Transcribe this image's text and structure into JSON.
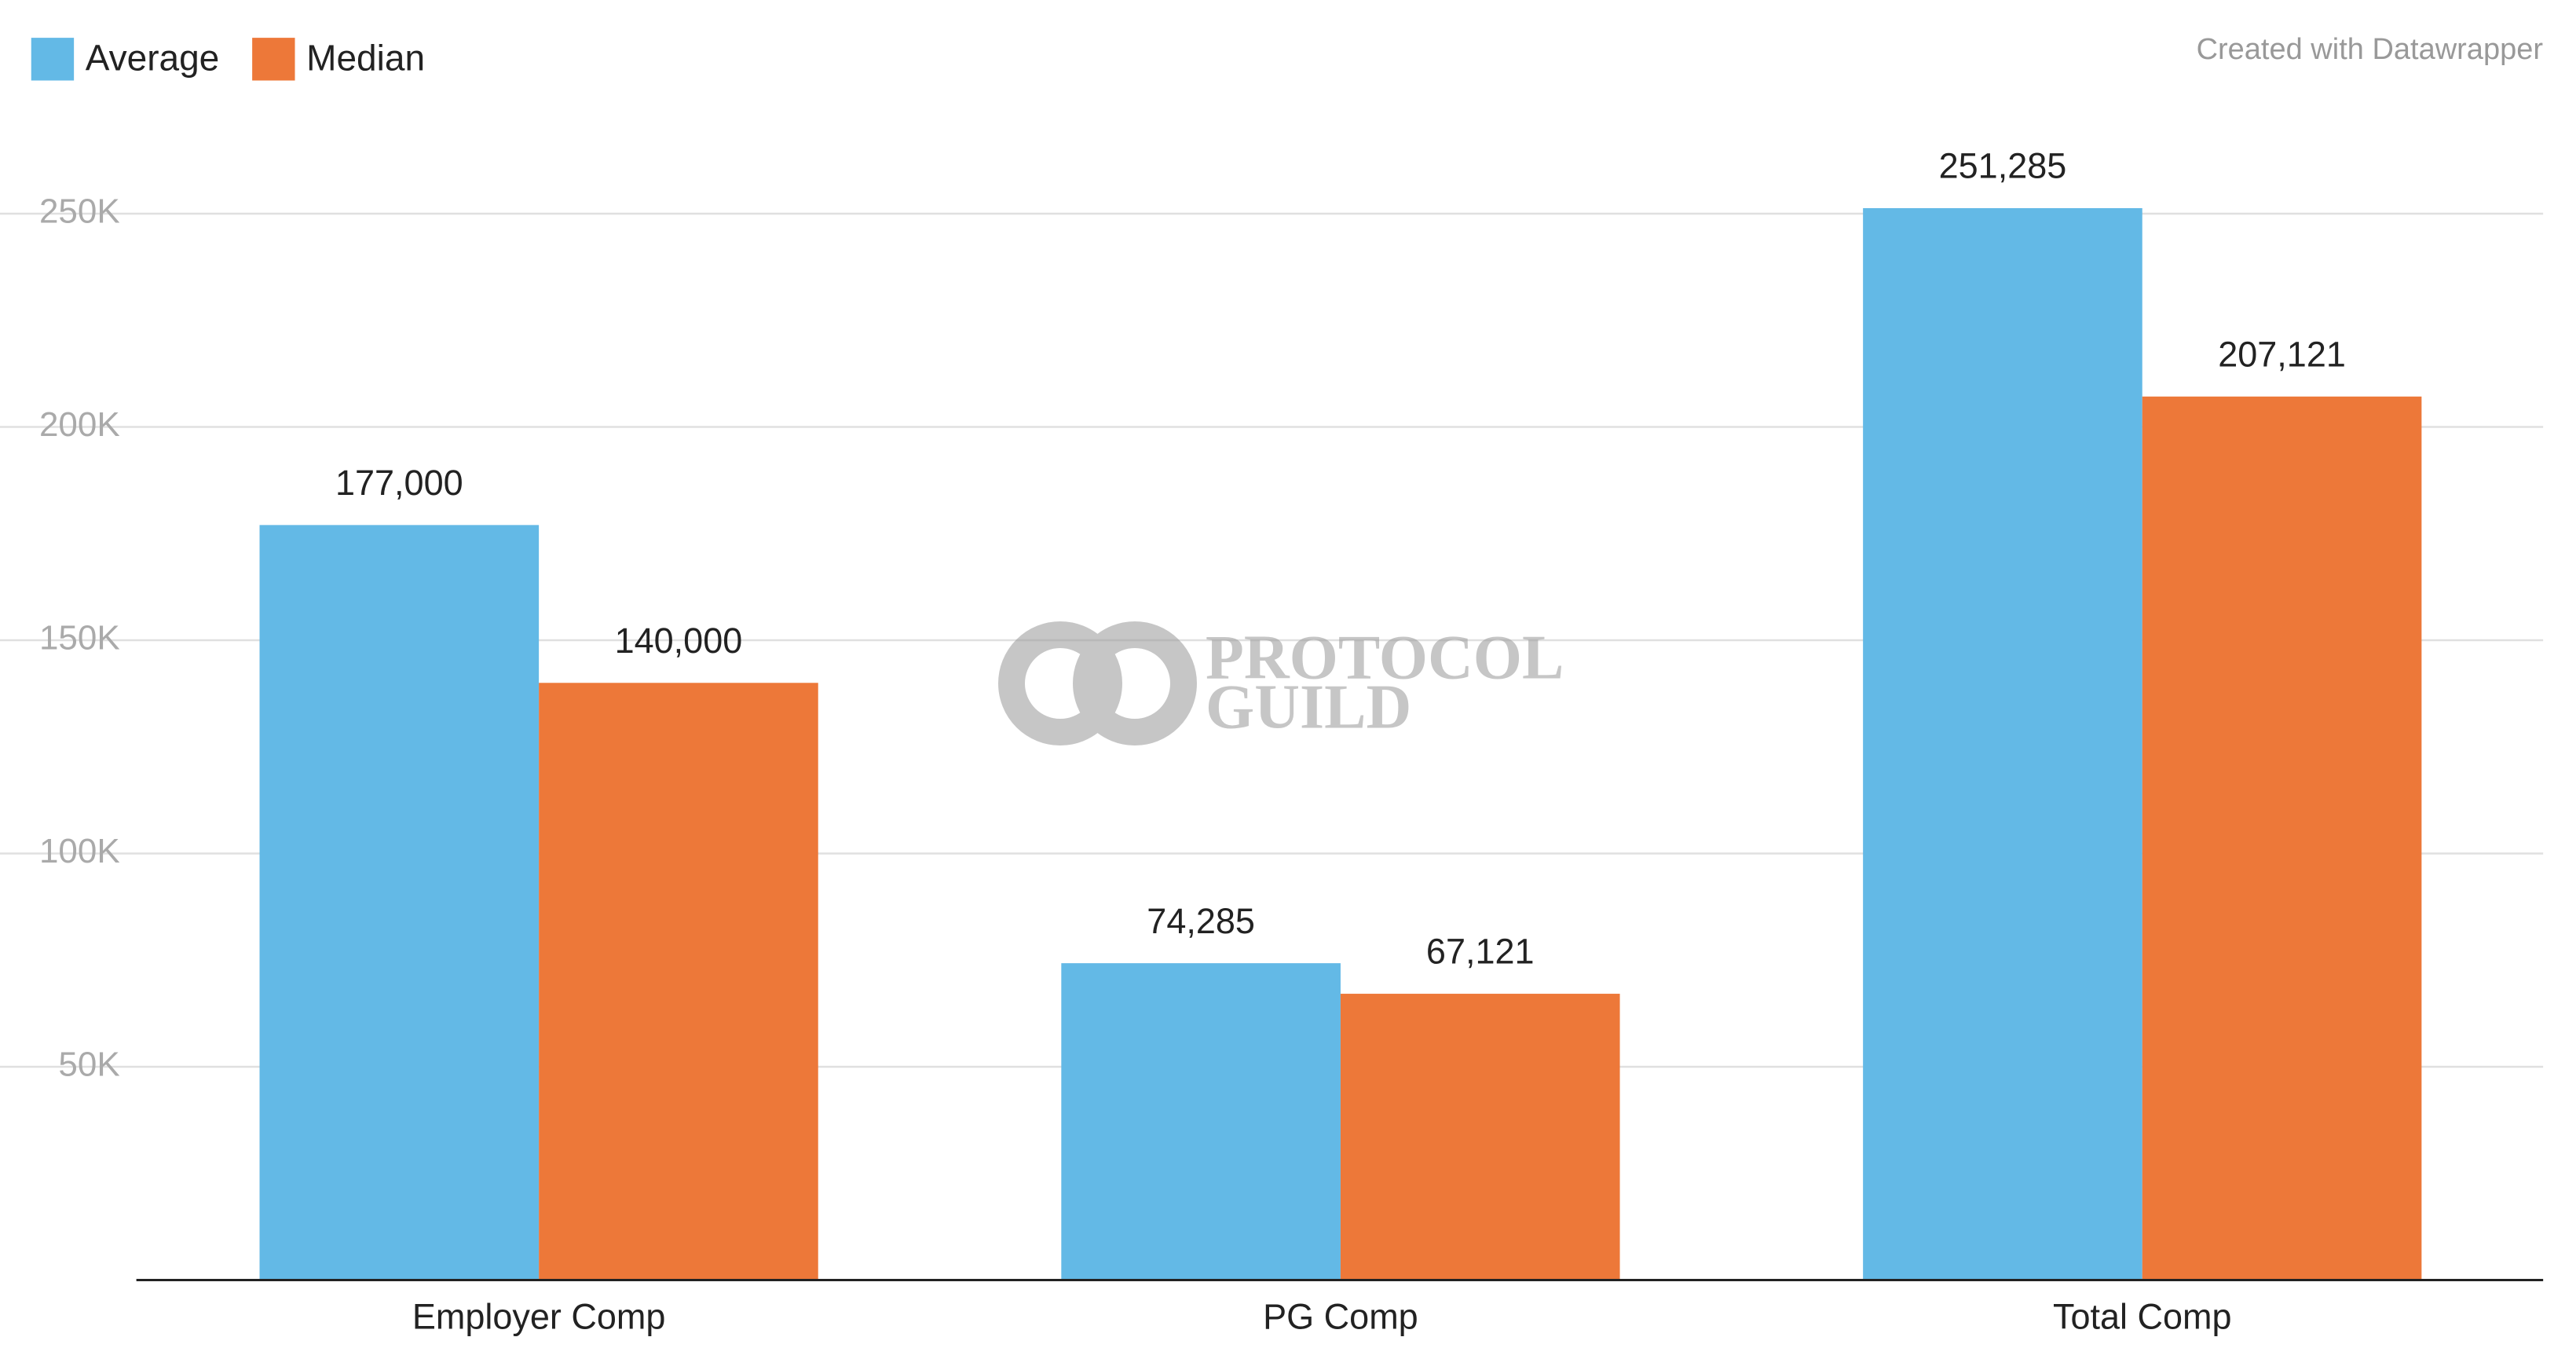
{
  "chart_data": {
    "type": "bar",
    "credit": "Created with Datawrapper",
    "watermark": [
      "PROTOCOL",
      "GUILD"
    ],
    "categories": [
      "Employer Comp",
      "PG Comp",
      "Total Comp"
    ],
    "series": [
      {
        "name": "Average",
        "color": "#63b9e6",
        "values": [
          177000,
          74285,
          251285
        ],
        "value_labels": [
          "177,000",
          "74,285",
          "251,285"
        ]
      },
      {
        "name": "Median",
        "color": "#ed7839",
        "values": [
          140000,
          67121,
          207121
        ],
        "value_labels": [
          "140,000",
          "67,121",
          "207,121"
        ]
      }
    ],
    "ylim": [
      0,
      250000
    ],
    "yticks": [
      {
        "value": 50000,
        "label": "50K"
      },
      {
        "value": 100000,
        "label": "100K"
      },
      {
        "value": 150000,
        "label": "150K"
      },
      {
        "value": 200000,
        "label": "200K"
      },
      {
        "value": 250000,
        "label": "250K"
      }
    ],
    "grid": true
  }
}
